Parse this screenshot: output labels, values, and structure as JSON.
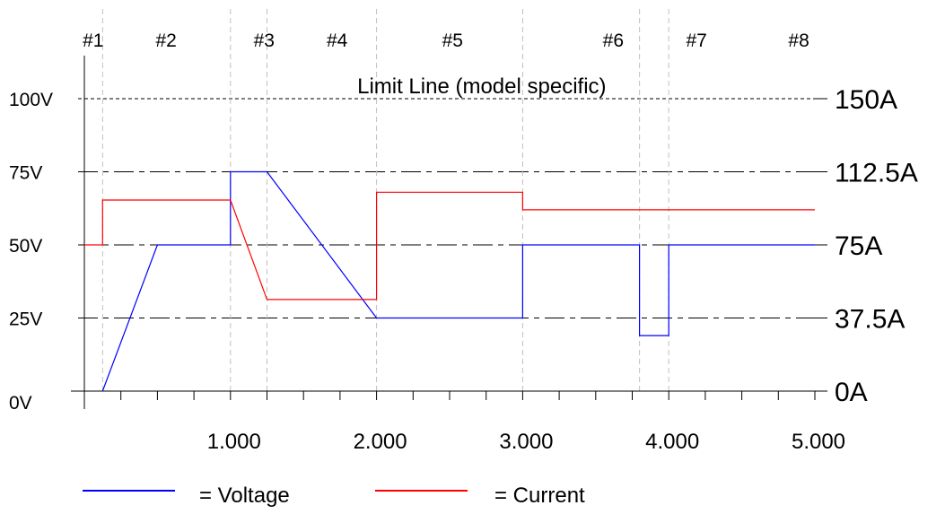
{
  "chart_data": {
    "type": "line",
    "x_range": [
      0,
      5
    ],
    "voltage_axis": {
      "range": [
        0,
        100
      ],
      "ticks": [
        0,
        25,
        50,
        75,
        100
      ],
      "tick_labels": [
        "0V",
        "25V",
        "50V",
        "75V",
        "100V"
      ]
    },
    "current_axis": {
      "range": [
        0,
        150
      ],
      "ticks": [
        0,
        37.5,
        75,
        112.5,
        150
      ],
      "tick_labels": [
        "0A",
        "37.5A",
        "75A",
        "112.5A",
        "150A"
      ]
    },
    "x_tick_labels": [
      {
        "x": 1,
        "label": "1.000"
      },
      {
        "x": 2,
        "label": "2.000"
      },
      {
        "x": 3,
        "label": "3.000"
      },
      {
        "x": 4,
        "label": "4.000"
      },
      {
        "x": 5,
        "label": "5.000"
      }
    ],
    "segment_boundaries": [
      0.125,
      1.0,
      1.25,
      2.0,
      3.0,
      3.8,
      4.0
    ],
    "segments": [
      {
        "label": "#1",
        "x": 0.06
      },
      {
        "label": "#2",
        "x": 0.56
      },
      {
        "label": "#3",
        "x": 1.23
      },
      {
        "label": "#4",
        "x": 1.73
      },
      {
        "label": "#5",
        "x": 2.52
      },
      {
        "label": "#6",
        "x": 3.62
      },
      {
        "label": "#7",
        "x": 4.19
      },
      {
        "label": "#8",
        "x": 4.89
      }
    ],
    "annotation": {
      "text": "Limit Line (model specific)",
      "x": 2.72,
      "value_v": 100
    },
    "series": [
      {
        "name": "Voltage",
        "color": "#0000ff",
        "axis": "voltage",
        "points": [
          [
            0.125,
            0
          ],
          [
            0.5,
            50
          ],
          [
            1.0,
            50
          ],
          [
            1.0,
            75
          ],
          [
            1.25,
            75
          ],
          [
            2.0,
            25
          ],
          [
            3.0,
            25
          ],
          [
            3.0,
            50
          ],
          [
            3.8,
            50
          ],
          [
            3.8,
            19
          ],
          [
            4.0,
            19
          ],
          [
            4.0,
            50
          ],
          [
            5.0,
            50
          ]
        ]
      },
      {
        "name": "Current",
        "color": "#ff0000",
        "axis": "current",
        "points": [
          [
            0,
            75
          ],
          [
            0.125,
            75
          ],
          [
            0.125,
            98
          ],
          [
            1.0,
            98
          ],
          [
            1.25,
            47
          ],
          [
            2.0,
            47
          ],
          [
            2.0,
            102
          ],
          [
            3.0,
            102
          ],
          [
            3.0,
            93
          ],
          [
            5.0,
            93
          ]
        ]
      }
    ],
    "legend": {
      "placement": "bottom",
      "items": [
        {
          "label": "= Voltage",
          "color": "#0000ff"
        },
        {
          "label": "= Current",
          "color": "#ff0000"
        }
      ]
    }
  }
}
